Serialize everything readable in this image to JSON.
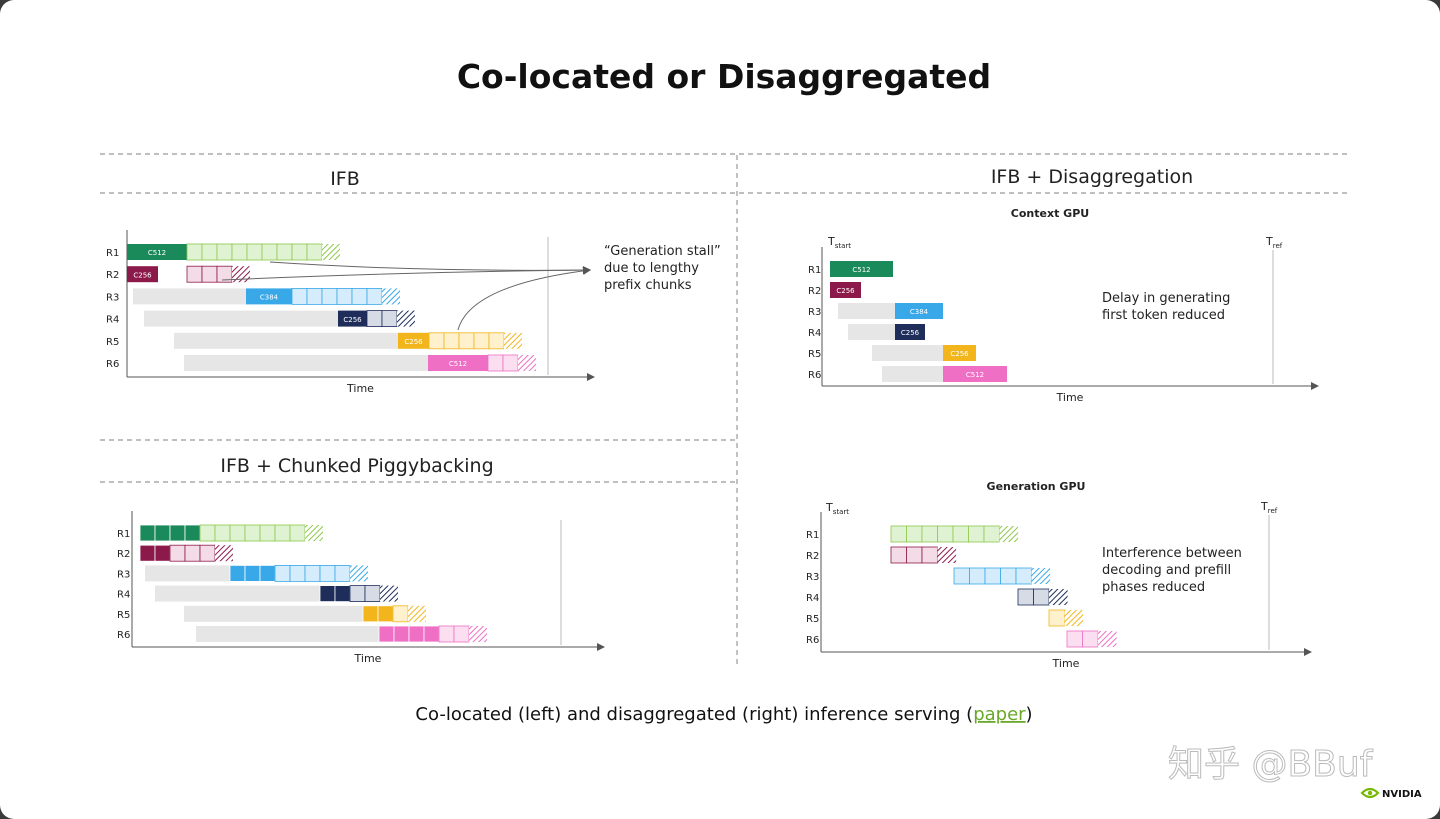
{
  "title": "Co-located or Disaggregated",
  "sections": {
    "ifb": "IFB",
    "ifb_chunked": "IFB + Chunked Piggybacking",
    "ifb_disagg": "IFB + Disaggregation"
  },
  "subtitles": {
    "context_gpu": "Context GPU",
    "generation_gpu": "Generation GPU"
  },
  "axis_label": "Time",
  "t_start": "T",
  "t_start_sub": "start",
  "t_ref": "T",
  "t_ref_sub": "ref",
  "notes": {
    "generation_stall": [
      "“Generation stall”",
      "due to lengthy",
      "prefix chunks"
    ],
    "delay": [
      "Delay in generating",
      "first token reduced"
    ],
    "interference": [
      "Interference between",
      "decoding and prefill",
      "phases reduced"
    ]
  },
  "colors": {
    "green": "#1b8a5a",
    "maroon": "#8b1a4a",
    "blue": "#38a8e8",
    "navy": "#1e2d5a",
    "yellow": "#f2b51c",
    "pink": "#ee6fc3",
    "gray": "#e6e6e6"
  },
  "chart_data": [
    {
      "type": "timeline",
      "name": "IFB",
      "rows": [
        {
          "label": "R1",
          "chunk": "C512",
          "color": "green"
        },
        {
          "label": "R2",
          "chunk": "C256",
          "color": "maroon"
        },
        {
          "label": "R3",
          "chunk": "C384",
          "color": "blue"
        },
        {
          "label": "R4",
          "chunk": "C256",
          "color": "navy"
        },
        {
          "label": "R5",
          "chunk": "C256",
          "color": "yellow"
        },
        {
          "label": "R6",
          "chunk": "C512",
          "color": "pink"
        }
      ]
    },
    {
      "type": "timeline",
      "name": "IFB + Chunked Piggybacking",
      "rows": [
        {
          "label": "R1",
          "color": "green"
        },
        {
          "label": "R2",
          "color": "maroon"
        },
        {
          "label": "R3",
          "color": "blue"
        },
        {
          "label": "R4",
          "color": "navy"
        },
        {
          "label": "R5",
          "color": "yellow"
        },
        {
          "label": "R6",
          "color": "pink"
        }
      ]
    },
    {
      "type": "timeline",
      "name": "Context GPU",
      "rows": [
        {
          "label": "R1",
          "chunk": "C512",
          "color": "green"
        },
        {
          "label": "R2",
          "chunk": "C256",
          "color": "maroon"
        },
        {
          "label": "R3",
          "chunk": "C384",
          "color": "blue"
        },
        {
          "label": "R4",
          "chunk": "C256",
          "color": "navy"
        },
        {
          "label": "R5",
          "chunk": "C256",
          "color": "yellow"
        },
        {
          "label": "R6",
          "chunk": "C512",
          "color": "pink"
        }
      ]
    },
    {
      "type": "timeline",
      "name": "Generation GPU",
      "rows": [
        {
          "label": "R1",
          "color": "green"
        },
        {
          "label": "R2",
          "color": "maroon"
        },
        {
          "label": "R3",
          "color": "blue"
        },
        {
          "label": "R4",
          "color": "navy"
        },
        {
          "label": "R5",
          "color": "yellow"
        },
        {
          "label": "R6",
          "color": "pink"
        }
      ]
    }
  ],
  "caption": {
    "before": "Co-located (left) and disaggregated (right) inference serving (",
    "link": "paper",
    "after": ")"
  },
  "watermark": "知乎 @BBuf",
  "brand": "NVIDIA"
}
